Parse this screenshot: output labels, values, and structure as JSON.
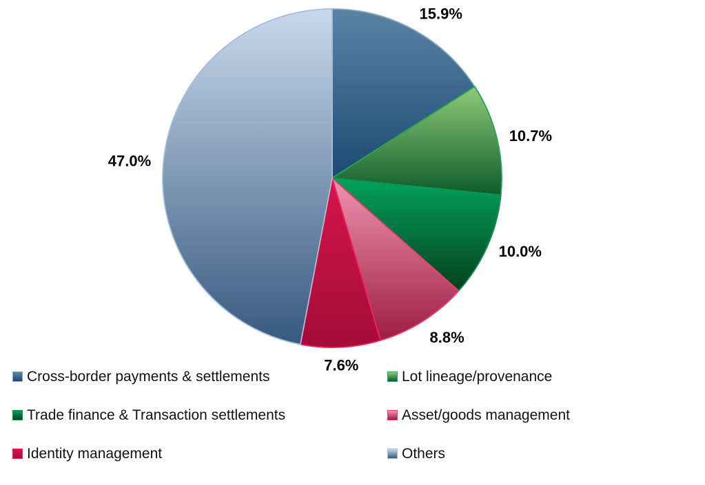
{
  "chart_data": {
    "type": "pie",
    "unit": "%",
    "direction": "clockwise",
    "start_angle_deg": 0,
    "legend_position": "bottom",
    "legend_columns": 2,
    "grid": false,
    "background": "#ffffff",
    "label_color": "#000000",
    "series": [
      {
        "label": "Cross-border payments & settlements",
        "value": 15.9,
        "display": "15.9%",
        "gradient_top": "#5b83a6",
        "gradient_bottom": "#1d4a73",
        "border": "#86a8c0"
      },
      {
        "label": "Lot lineage/provenance",
        "value": 10.7,
        "display": "10.7%",
        "gradient_top": "#90ca78",
        "gradient_bottom": "#0d5c2a",
        "border": "#22a556"
      },
      {
        "label": "Trade finance & Transaction settlements",
        "value": 10.0,
        "display": "10.0%",
        "gradient_top": "#02a25c",
        "gradient_bottom": "#05401e",
        "border": "#0c9553"
      },
      {
        "label": "Asset/goods management",
        "value": 8.8,
        "display": "8.8%",
        "gradient_top": "#f095b2",
        "gradient_bottom": "#9d1d42",
        "border": "#f43a6e"
      },
      {
        "label": "Identity management",
        "value": 7.6,
        "display": "7.6%",
        "gradient_top": "#d51549",
        "gradient_bottom": "#a30c39",
        "border": "#f5205c"
      },
      {
        "label": "Others",
        "value": 47.0,
        "display": "47.0%",
        "gradient_top": "#c9d9ec",
        "gradient_bottom": "#37597f",
        "border": "#a5bed7"
      }
    ]
  }
}
